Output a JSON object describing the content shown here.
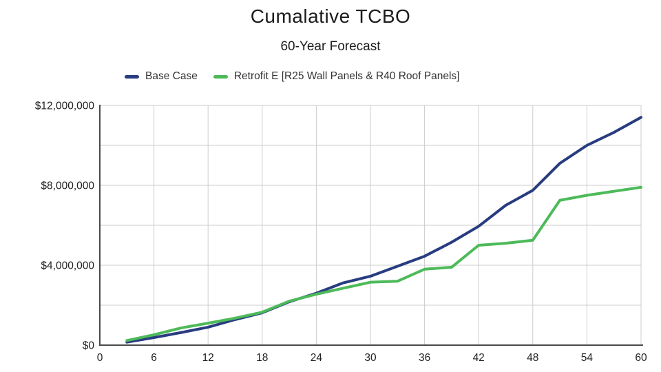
{
  "chart_data": {
    "type": "line",
    "title": "Cumalative TCBO",
    "subtitle": "60-Year Forecast",
    "xlabel": "",
    "ylabel": "",
    "xlim": [
      0,
      60
    ],
    "ylim": [
      0,
      12000000
    ],
    "grid": true,
    "legend_position": "top",
    "x": [
      3,
      6,
      9,
      12,
      15,
      18,
      21,
      24,
      27,
      30,
      33,
      36,
      39,
      42,
      45,
      48,
      51,
      54,
      57,
      60
    ],
    "series": [
      {
        "id": "base-case",
        "name": "Base Case",
        "color": "#283c80",
        "values": [
          150000,
          380000,
          630000,
          900000,
          1280000,
          1620000,
          2170000,
          2600000,
          3120000,
          3450000,
          3950000,
          4450000,
          5150000,
          5950000,
          7000000,
          7750000,
          9100000,
          10000000,
          10650000,
          11400000
        ]
      },
      {
        "id": "retrofit-e",
        "name": "Retrofit E [R25 Wall Panels & R40 Roof Panels]",
        "color": "#4dba59",
        "values": [
          230000,
          520000,
          860000,
          1100000,
          1350000,
          1650000,
          2200000,
          2550000,
          2850000,
          3150000,
          3200000,
          3800000,
          3900000,
          5000000,
          5100000,
          5250000,
          7250000,
          7500000,
          7700000,
          7900000
        ]
      }
    ],
    "x_ticks": [
      {
        "value": 0,
        "label": "0"
      },
      {
        "value": 6,
        "label": "6"
      },
      {
        "value": 12,
        "label": "12"
      },
      {
        "value": 18,
        "label": "18"
      },
      {
        "value": 24,
        "label": "24"
      },
      {
        "value": 30,
        "label": "30"
      },
      {
        "value": 36,
        "label": "36"
      },
      {
        "value": 42,
        "label": "42"
      },
      {
        "value": 48,
        "label": "48"
      },
      {
        "value": 54,
        "label": "54"
      },
      {
        "value": 60,
        "label": "60"
      }
    ],
    "y_ticks": [
      {
        "value": 0,
        "label": "$0"
      },
      {
        "value": 4000000,
        "label": "$4,000,000"
      },
      {
        "value": 8000000,
        "label": "$8,000,000"
      },
      {
        "value": 12000000,
        "label": "$12,000,000"
      }
    ],
    "x_gridlines": [
      6,
      12,
      18,
      24,
      30,
      36,
      42,
      48,
      54,
      60
    ],
    "y_gridlines": [
      2000000,
      4000000,
      6000000,
      8000000,
      10000000,
      12000000
    ],
    "colors": {
      "axis": "#4a4a4a",
      "gridline": "#cccccc",
      "tick_text": "#212121",
      "title_text": "#1c1c1c"
    }
  }
}
